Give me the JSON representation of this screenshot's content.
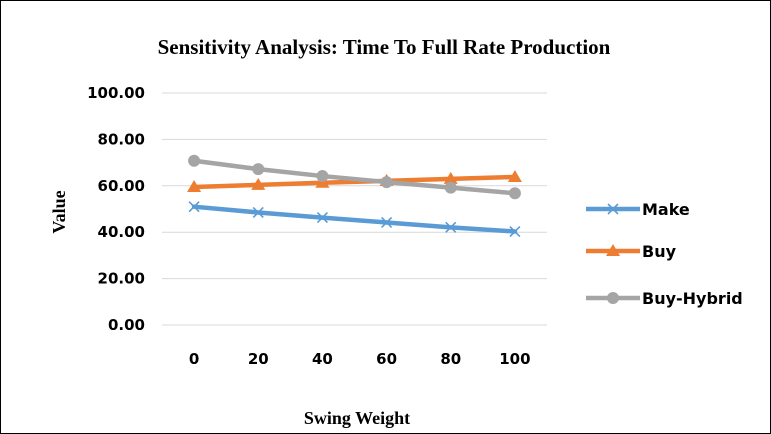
{
  "chart_data": {
    "type": "line",
    "title": "Sensitivity Analysis:  Time To Full Rate Production",
    "xlabel": "Swing Weight",
    "ylabel": "Value",
    "categories": [
      "0",
      "20",
      "40",
      "60",
      "80",
      "100"
    ],
    "y_tick_labels": [
      "0.00",
      "20.00",
      "40.00",
      "60.00",
      "80.00",
      "100.00"
    ],
    "ylim": [
      0,
      100
    ],
    "grid": "horizontal",
    "legend_position": "right",
    "series": [
      {
        "name": "Make",
        "values": [
          51,
          48.5,
          46.3,
          44.2,
          42.1,
          40.3
        ],
        "color": "#5B9BD5",
        "marker": "x"
      },
      {
        "name": "Buy",
        "values": [
          59.5,
          60.4,
          61.3,
          62.1,
          63,
          63.8
        ],
        "color": "#ED7D31",
        "marker": "triangle"
      },
      {
        "name": "Buy-Hybrid",
        "values": [
          70.8,
          67.2,
          64.2,
          61.6,
          59.2,
          56.8
        ],
        "color": "#A5A5A5",
        "marker": "circle"
      }
    ]
  }
}
